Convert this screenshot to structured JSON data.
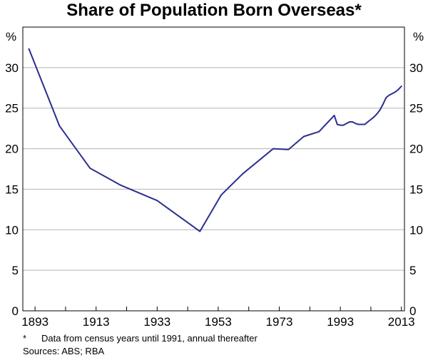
{
  "chart_data": {
    "type": "line",
    "title": "Share of Population Born Overseas*",
    "unit_left": "%",
    "unit_right": "%",
    "xlim": [
      1889,
      2014
    ],
    "ylim": [
      0,
      35
    ],
    "yticks": [
      0,
      5,
      10,
      15,
      20,
      25,
      30
    ],
    "xtick_labels": [
      1893,
      1913,
      1933,
      1953,
      1973,
      1993,
      2013
    ],
    "x_minor_ticks": [
      1893,
      1903,
      1913,
      1923,
      1933,
      1943,
      1953,
      1963,
      1973,
      1983,
      1993,
      2003,
      2013
    ],
    "grid": true,
    "series": [
      {
        "name": "Share of population born overseas",
        "color": "#2b2f8f",
        "x": [
          1891,
          1901,
          1911,
          1921,
          1933,
          1947,
          1954,
          1961,
          1971,
          1976,
          1981,
          1986,
          1991,
          1992,
          1993,
          1994,
          1995,
          1996,
          1997,
          1998,
          1999,
          2000,
          2001,
          2002,
          2003,
          2004,
          2005,
          2006,
          2007,
          2008,
          2009,
          2010,
          2011,
          2012,
          2013
        ],
        "y": [
          32.3,
          22.8,
          17.6,
          15.5,
          13.6,
          9.8,
          14.3,
          16.9,
          20.0,
          19.9,
          21.5,
          22.1,
          24.1,
          23.0,
          22.9,
          22.9,
          23.1,
          23.3,
          23.3,
          23.1,
          23.0,
          23.0,
          23.0,
          23.3,
          23.6,
          23.9,
          24.3,
          24.8,
          25.5,
          26.3,
          26.6,
          26.8,
          27.0,
          27.3,
          27.7
        ]
      }
    ]
  },
  "footnote": {
    "mark": "*",
    "text": "Data from census years until 1991, annual thereafter"
  },
  "sources": "Sources: ABS; RBA"
}
